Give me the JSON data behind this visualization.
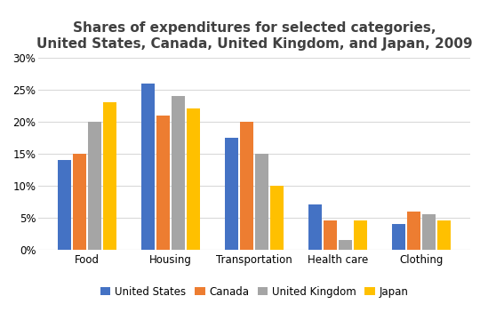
{
  "title": "Shares of expenditures for selected categories,\nUnited States, Canada, United Kingdom, and Japan, 2009",
  "categories": [
    "Food",
    "Housing",
    "Transportation",
    "Health care",
    "Clothing"
  ],
  "countries": [
    "United States",
    "Canada",
    "United Kingdom",
    "Japan"
  ],
  "values": {
    "United States": [
      14,
      26,
      17.5,
      7,
      4
    ],
    "Canada": [
      15,
      21,
      20,
      4.5,
      6
    ],
    "United Kingdom": [
      20,
      24,
      15,
      1.5,
      5.5
    ],
    "Japan": [
      23,
      22,
      10,
      4.5,
      4.5
    ]
  },
  "colors": {
    "United States": "#4472C4",
    "Canada": "#ED7D31",
    "United Kingdom": "#A5A5A5",
    "Japan": "#FFC000"
  },
  "ylim": [
    0,
    30
  ],
  "yticks": [
    0,
    5,
    10,
    15,
    20,
    25,
    30
  ],
  "title_fontsize": 11,
  "legend_fontsize": 8.5,
  "tick_fontsize": 8.5,
  "background_color": "#FFFFFF",
  "grid_color": "#D9D9D9"
}
